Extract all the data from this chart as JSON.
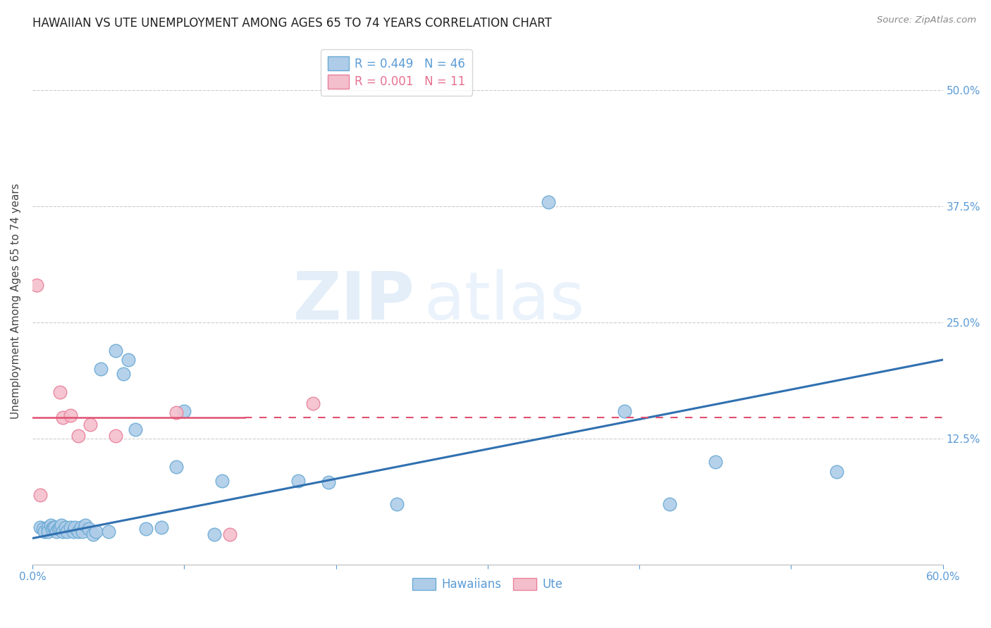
{
  "title": "HAWAIIAN VS UTE UNEMPLOYMENT AMONG AGES 65 TO 74 YEARS CORRELATION CHART",
  "source": "Source: ZipAtlas.com",
  "ylabel": "Unemployment Among Ages 65 to 74 years",
  "xlim": [
    0.0,
    0.6
  ],
  "ylim": [
    -0.01,
    0.5556
  ],
  "xticks": [
    0.0,
    0.1,
    0.2,
    0.3,
    0.4,
    0.5,
    0.6
  ],
  "xticklabels": [
    "0.0%",
    "",
    "",
    "",
    "",
    "",
    "60.0%"
  ],
  "yticks_right": [
    0.0,
    0.125,
    0.25,
    0.375,
    0.5
  ],
  "yticklabels_right": [
    "",
    "12.5%",
    "25.0%",
    "37.5%",
    "50.0%"
  ],
  "hawaiians_R": 0.449,
  "hawaiians_N": 46,
  "ute_R": 0.001,
  "ute_N": 11,
  "hawaiian_color": "#aecce8",
  "hawaiian_edge_color": "#6aaad4",
  "ute_color": "#f4bfcc",
  "ute_edge_color": "#e8809a",
  "hawaiian_trend_color": "#3070b0",
  "ute_trend_color": "#e05070",
  "watermark_zip": "ZIP",
  "watermark_atlas": "atlas",
  "hawaiians_x": [
    0.005,
    0.007,
    0.008,
    0.01,
    0.01,
    0.012,
    0.013,
    0.014,
    0.015,
    0.016,
    0.017,
    0.018,
    0.019,
    0.02,
    0.022,
    0.023,
    0.025,
    0.027,
    0.028,
    0.03,
    0.032,
    0.033,
    0.035,
    0.037,
    0.04,
    0.042,
    0.045,
    0.05,
    0.055,
    0.06,
    0.063,
    0.068,
    0.075,
    0.085,
    0.095,
    0.1,
    0.12,
    0.125,
    0.175,
    0.195,
    0.24,
    0.34,
    0.39,
    0.42,
    0.45,
    0.53
  ],
  "hawaiians_y": [
    0.03,
    0.028,
    0.025,
    0.03,
    0.025,
    0.032,
    0.028,
    0.03,
    0.03,
    0.025,
    0.028,
    0.03,
    0.032,
    0.025,
    0.03,
    0.025,
    0.03,
    0.025,
    0.03,
    0.025,
    0.03,
    0.025,
    0.032,
    0.028,
    0.022,
    0.025,
    0.2,
    0.025,
    0.22,
    0.195,
    0.21,
    0.135,
    0.028,
    0.03,
    0.095,
    0.155,
    0.022,
    0.08,
    0.08,
    0.078,
    0.055,
    0.38,
    0.155,
    0.055,
    0.1,
    0.09
  ],
  "ute_x": [
    0.003,
    0.005,
    0.018,
    0.02,
    0.025,
    0.03,
    0.038,
    0.055,
    0.095,
    0.13,
    0.185
  ],
  "ute_y": [
    0.29,
    0.065,
    0.175,
    0.148,
    0.15,
    0.128,
    0.14,
    0.128,
    0.153,
    0.022,
    0.163
  ],
  "hawaiian_trend_x0": 0.0,
  "hawaiian_trend_x1": 0.6,
  "hawaiian_trend_y0": 0.018,
  "hawaiian_trend_y1": 0.21,
  "ute_trend_y": 0.148,
  "ute_trend_solid_x0": 0.0,
  "ute_trend_solid_x1": 0.14,
  "grid_color": "#cccccc",
  "background_color": "#ffffff",
  "title_fontsize": 12,
  "label_fontsize": 11,
  "tick_fontsize": 11,
  "legend_fontsize": 12
}
